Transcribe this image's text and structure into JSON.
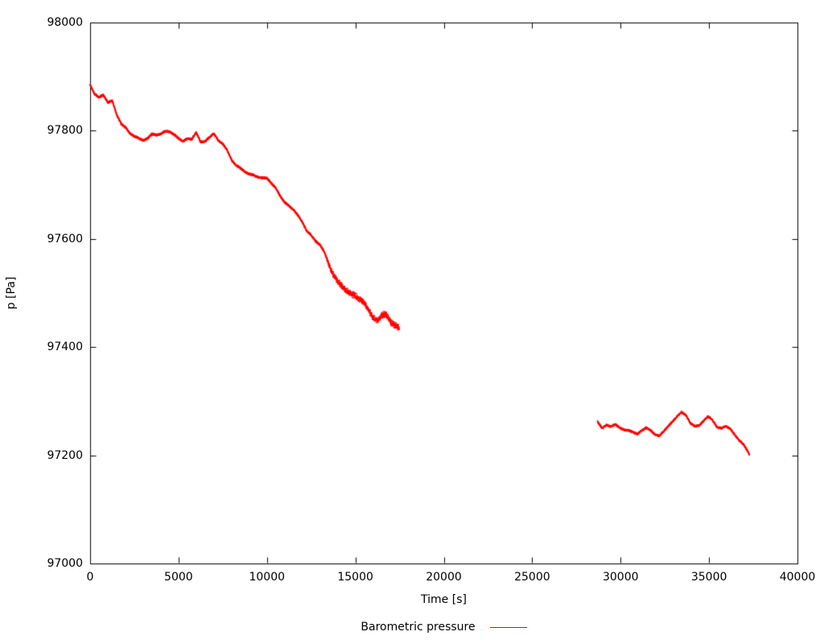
{
  "background": "#ffffff",
  "axes_color": "#000000",
  "chart_data": {
    "type": "scatter",
    "title": "",
    "xlabel": "Time [s]",
    "ylabel": "p [Pa]",
    "xlim": [
      0,
      40000
    ],
    "ylim": [
      97000,
      98000
    ],
    "xticks": [
      0,
      5000,
      10000,
      15000,
      20000,
      25000,
      30000,
      35000,
      40000
    ],
    "yticks": [
      97000,
      97200,
      97400,
      97600,
      97800,
      98000
    ],
    "grid": false,
    "legend_position": "bottom-center-below-plot",
    "legend": [
      {
        "name": "Barometric pressure",
        "color": "#ff0000"
      }
    ],
    "series": [
      {
        "name": "Barometric pressure",
        "color": "#ff0000",
        "marker": "dot",
        "segments": [
          {
            "noise": 2.2,
            "noise_regions": [
              {
                "start": 13400,
                "end": 17500,
                "amp": 6.5
              }
            ],
            "x": [
              0,
              250,
              500,
              750,
              1000,
              1250,
              1500,
              1750,
              2000,
              2250,
              2500,
              2750,
              3000,
              3250,
              3500,
              3750,
              4000,
              4250,
              4500,
              4750,
              5000,
              5250,
              5500,
              5750,
              6000,
              6250,
              6500,
              6750,
              7000,
              7250,
              7500,
              7750,
              8000,
              8250,
              8500,
              8750,
              9000,
              9250,
              9500,
              9750,
              10000,
              10250,
              10500,
              10750,
              11000,
              11250,
              11500,
              11750,
              12000,
              12250,
              12500,
              12750,
              13000,
              13250,
              13500,
              13750,
              14000,
              14250,
              14500,
              14750,
              15000,
              15250,
              15500,
              15750,
              16000,
              16250,
              16500,
              16750,
              17000,
              17250,
              17500
            ],
            "y": [
              97885,
              97868,
              97862,
              97866,
              97852,
              97856,
              97830,
              97813,
              97806,
              97795,
              97790,
              97786,
              97782,
              97786,
              97794,
              97792,
              97794,
              97799,
              97798,
              97793,
              97786,
              97780,
              97786,
              97784,
              97797,
              97779,
              97780,
              97788,
              97795,
              97782,
              97776,
              97764,
              97746,
              97736,
              97731,
              97724,
              97720,
              97718,
              97714,
              97713,
              97712,
              97703,
              97694,
              97679,
              97668,
              97661,
              97654,
              97644,
              97631,
              97615,
              97607,
              97596,
              97589,
              97576,
              97552,
              97534,
              97522,
              97512,
              97504,
              97499,
              97495,
              97488,
              97482,
              97469,
              97455,
              97448,
              97460,
              97460,
              97446,
              97440,
              97436
            ]
          },
          {
            "noise": 2.0,
            "noise_regions": [],
            "x": [
              28700,
              28950,
              29200,
              29450,
              29700,
              29950,
              30200,
              30450,
              30700,
              30950,
              31200,
              31450,
              31700,
              31950,
              32200,
              32450,
              32700,
              32950,
              33200,
              33450,
              33700,
              33950,
              34200,
              34450,
              34700,
              34950,
              35200,
              35450,
              35700,
              35950,
              36200,
              36450,
              36700,
              36950,
              37200,
              37300
            ],
            "y": [
              97262,
              97250,
              97256,
              97253,
              97257,
              97251,
              97247,
              97246,
              97243,
              97239,
              97246,
              97251,
              97246,
              97238,
              97236,
              97245,
              97254,
              97263,
              97272,
              97280,
              97274,
              97259,
              97254,
              97255,
              97264,
              97272,
              97265,
              97252,
              97250,
              97254,
              97249,
              97238,
              97228,
              97220,
              97207,
              97200
            ]
          }
        ]
      }
    ]
  }
}
